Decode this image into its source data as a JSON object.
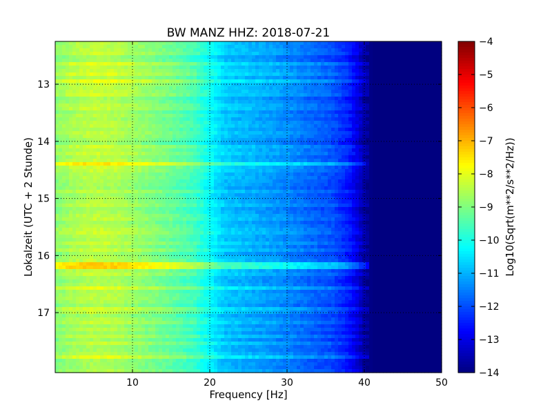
{
  "chart_data": {
    "type": "heatmap",
    "title": "BW MANZ HHZ: 2018-07-21",
    "xlabel": "Frequency [Hz]",
    "ylabel": "Lokalzeit (UTC + 2 Stunde)",
    "xlim": [
      0,
      50
    ],
    "ylim": [
      12.25,
      18.05
    ],
    "y_inverted": true,
    "x_ticks": [
      10,
      20,
      30,
      40,
      50
    ],
    "x_tick_labels": [
      "10",
      "20",
      "30",
      "40",
      "50"
    ],
    "y_ticks": [
      13,
      14,
      15,
      16,
      17
    ],
    "y_tick_labels": [
      "13",
      "14",
      "15",
      "16",
      "17"
    ],
    "grid": true,
    "colormap": "jet",
    "colorbar": {
      "label": "Log10(Sqrt(m**2/s**2/Hz))",
      "min": -14,
      "max": -4,
      "ticks": [
        -4,
        -5,
        -6,
        -7,
        -8,
        -9,
        -10,
        -11,
        -12,
        -13,
        -14
      ],
      "tick_labels": [
        "−4",
        "−5",
        "−6",
        "−7",
        "−8",
        "−9",
        "−10",
        "−11",
        "−12",
        "−13",
        "−14"
      ]
    },
    "spectrum_profile": {
      "frequency_hz": [
        0,
        2,
        5,
        8,
        10,
        12,
        15,
        18,
        20,
        22,
        25,
        28,
        30,
        33,
        36,
        38,
        39,
        40,
        41,
        50
      ],
      "level": [
        -8.9,
        -8.6,
        -8.4,
        -8.5,
        -8.7,
        -8.9,
        -9.2,
        -9.6,
        -10.2,
        -10.8,
        -11.0,
        -11.2,
        -11.4,
        -11.7,
        -12.0,
        -12.5,
        -13.0,
        -13.6,
        -14.0,
        -14.0
      ]
    },
    "notable_events": [
      {
        "time_h": 14.4,
        "level_boost": 1.1,
        "max_freq_hz": 40
      },
      {
        "time_h": 16.18,
        "level_boost": 1.3,
        "max_freq_hz": 43
      }
    ]
  }
}
